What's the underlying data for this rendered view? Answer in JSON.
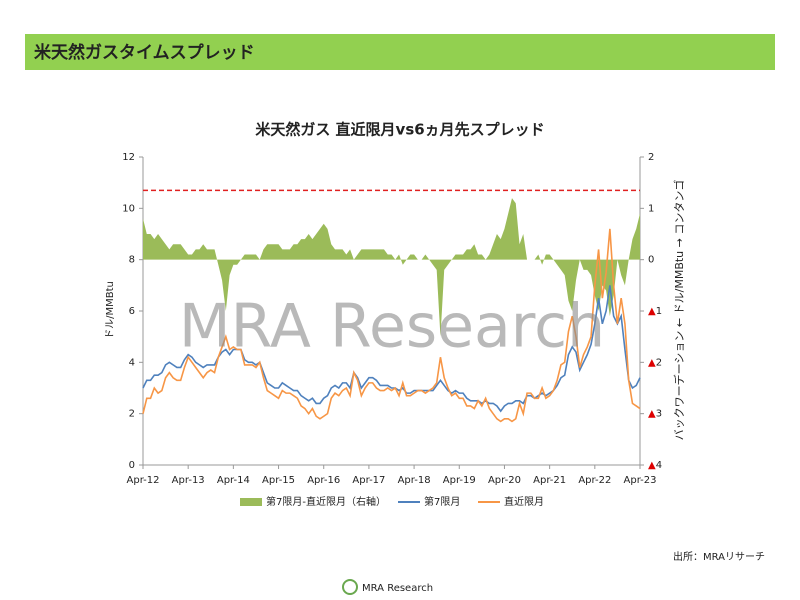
{
  "header": {
    "title": "米天然ガスタイムスプレッド"
  },
  "source": "出所：MRAリサーチ",
  "logo": "MRA Research",
  "watermark": "MRA Research",
  "chart_data": {
    "type": "line",
    "title": "米天然ガス 直近限月vs6ヵ月先スプレッド",
    "y_label": "ドル/MMBtu",
    "y2_label": "バックワーデーション ← ドル/MMBtu → コンタンゴ",
    "categories": [
      "Apr-12",
      null,
      null,
      null,
      null,
      null,
      null,
      null,
      null,
      null,
      null,
      null,
      "Apr-13",
      null,
      null,
      null,
      null,
      null,
      null,
      null,
      null,
      null,
      null,
      null,
      "Apr-14",
      null,
      null,
      null,
      null,
      null,
      null,
      null,
      null,
      null,
      null,
      null,
      "Apr-15",
      null,
      null,
      null,
      null,
      null,
      null,
      null,
      null,
      null,
      null,
      null,
      "Apr-16",
      null,
      null,
      null,
      null,
      null,
      null,
      null,
      null,
      null,
      null,
      null,
      "Apr-17",
      null,
      null,
      null,
      null,
      null,
      null,
      null,
      null,
      null,
      null,
      null,
      "Apr-18",
      null,
      null,
      null,
      null,
      null,
      null,
      null,
      null,
      null,
      null,
      null,
      "Apr-19",
      null,
      null,
      null,
      null,
      null,
      null,
      null,
      null,
      null,
      null,
      null,
      "Apr-20",
      null,
      null,
      null,
      null,
      null,
      null,
      null,
      null,
      null,
      null,
      null,
      "Apr-21",
      null,
      null,
      null,
      null,
      null,
      null,
      null,
      null,
      null,
      null,
      null,
      "Apr-22",
      null,
      null,
      null,
      null,
      null,
      null,
      null,
      null,
      null,
      null,
      null,
      "Apr-23"
    ],
    "series": [
      {
        "name": "第7限月-直近限月（右軸）",
        "color": "#9bbb59",
        "axis": "y2",
        "kind": "area",
        "values": [
          0.8,
          0.5,
          0.5,
          0.4,
          0.5,
          0.4,
          0.3,
          0.2,
          0.3,
          0.3,
          0.3,
          0.2,
          0.1,
          0.1,
          0.2,
          0.2,
          0.3,
          0.2,
          0.2,
          0.2,
          -0.1,
          -0.4,
          -1.0,
          -0.3,
          -0.1,
          -0.1,
          0.0,
          0.1,
          0.1,
          0.1,
          0.1,
          0.0,
          0.2,
          0.3,
          0.3,
          0.3,
          0.3,
          0.2,
          0.2,
          0.2,
          0.3,
          0.3,
          0.4,
          0.4,
          0.5,
          0.4,
          0.5,
          0.6,
          0.7,
          0.6,
          0.3,
          0.2,
          0.2,
          0.2,
          0.1,
          0.2,
          0.0,
          0.1,
          0.2,
          0.2,
          0.2,
          0.2,
          0.2,
          0.2,
          0.2,
          0.1,
          0.1,
          0.0,
          0.1,
          -0.1,
          0.0,
          0.1,
          0.1,
          0.0,
          0.0,
          0.1,
          0.0,
          -0.1,
          -0.2,
          -1.5,
          -0.2,
          -0.1,
          0.0,
          0.1,
          0.1,
          0.1,
          0.2,
          0.2,
          0.3,
          0.1,
          0.1,
          0.0,
          0.1,
          0.3,
          0.5,
          0.4,
          0.6,
          0.9,
          1.2,
          1.1,
          0.3,
          0.5,
          0.0,
          0.0,
          0.0,
          0.1,
          -0.1,
          0.1,
          0.1,
          0.0,
          -0.1,
          -0.2,
          -0.3,
          -0.8,
          -1.0,
          -0.4,
          0.0,
          -0.2,
          -0.2,
          -0.3,
          -0.7,
          -1.0,
          -0.5,
          -0.6,
          -1.1,
          -0.7,
          0.0,
          -0.3,
          -0.5,
          0.0,
          0.4,
          0.6,
          0.9
        ]
      },
      {
        "name": "第7限月",
        "color": "#4f81bd",
        "axis": "y",
        "kind": "line",
        "values": [
          3.0,
          3.3,
          3.3,
          3.5,
          3.5,
          3.6,
          3.9,
          4.0,
          3.9,
          3.8,
          3.8,
          4.1,
          4.3,
          4.2,
          4.0,
          3.9,
          3.8,
          3.9,
          3.9,
          3.9,
          4.2,
          4.4,
          4.5,
          4.3,
          4.5,
          4.5,
          4.5,
          4.1,
          4.0,
          4.0,
          3.9,
          4.0,
          3.6,
          3.2,
          3.1,
          3.0,
          3.0,
          3.2,
          3.1,
          3.0,
          2.9,
          2.9,
          2.7,
          2.6,
          2.5,
          2.6,
          2.4,
          2.4,
          2.6,
          2.7,
          3.0,
          3.1,
          3.0,
          3.2,
          3.2,
          3.0,
          3.6,
          3.4,
          3.0,
          3.2,
          3.4,
          3.4,
          3.3,
          3.1,
          3.1,
          3.1,
          3.0,
          3.0,
          2.9,
          3.0,
          2.8,
          2.8,
          2.9,
          2.9,
          2.9,
          2.9,
          2.9,
          2.9,
          3.1,
          3.3,
          3.1,
          2.9,
          2.8,
          2.9,
          2.8,
          2.8,
          2.6,
          2.5,
          2.5,
          2.5,
          2.4,
          2.5,
          2.4,
          2.4,
          2.3,
          2.1,
          2.3,
          2.4,
          2.4,
          2.5,
          2.5,
          2.4,
          2.7,
          2.7,
          2.6,
          2.7,
          2.8,
          2.7,
          2.8,
          2.9,
          3.1,
          3.4,
          3.5,
          4.3,
          4.6,
          4.4,
          3.7,
          4.0,
          4.3,
          4.7,
          5.5,
          6.5,
          5.5,
          6.0,
          7.0,
          5.8,
          5.5,
          5.8,
          4.5,
          3.3,
          3.0,
          3.1,
          3.4
        ]
      },
      {
        "name": "直近限月",
        "color": "#f79646",
        "axis": "y",
        "kind": "line",
        "values": [
          2.0,
          2.6,
          2.6,
          3.0,
          2.8,
          2.9,
          3.4,
          3.6,
          3.4,
          3.3,
          3.3,
          3.8,
          4.2,
          4.0,
          3.8,
          3.6,
          3.4,
          3.6,
          3.7,
          3.6,
          4.2,
          4.6,
          5.0,
          4.5,
          4.6,
          4.5,
          4.5,
          3.9,
          3.9,
          3.9,
          3.8,
          4.0,
          3.4,
          2.9,
          2.8,
          2.7,
          2.6,
          2.9,
          2.8,
          2.8,
          2.7,
          2.6,
          2.3,
          2.2,
          2.0,
          2.2,
          1.9,
          1.8,
          1.9,
          2.0,
          2.6,
          2.8,
          2.7,
          2.9,
          3.0,
          2.7,
          3.6,
          3.3,
          2.7,
          3.0,
          3.2,
          3.2,
          3.0,
          2.9,
          2.9,
          3.0,
          2.9,
          3.0,
          2.7,
          3.2,
          2.7,
          2.7,
          2.8,
          2.9,
          2.9,
          2.8,
          2.9,
          3.0,
          3.2,
          4.2,
          3.4,
          3.0,
          2.7,
          2.8,
          2.6,
          2.6,
          2.3,
          2.3,
          2.2,
          2.5,
          2.3,
          2.6,
          2.2,
          2.0,
          1.8,
          1.7,
          1.8,
          1.8,
          1.7,
          1.8,
          2.4,
          2.0,
          2.8,
          2.8,
          2.6,
          2.6,
          3.0,
          2.6,
          2.7,
          2.9,
          3.3,
          3.9,
          4.0,
          5.2,
          5.8,
          5.0,
          3.8,
          4.3,
          4.6,
          5.0,
          7.0,
          8.4,
          6.5,
          7.5,
          9.2,
          7.0,
          5.5,
          6.5,
          5.5,
          3.3,
          2.4,
          2.3,
          2.2
        ]
      }
    ],
    "reference_line": {
      "value": 10.7,
      "color": "#e02020"
    },
    "ylim": [
      0,
      12
    ],
    "yticks": [
      0,
      2,
      4,
      6,
      8,
      10,
      12
    ],
    "y2lim": [
      -4,
      2
    ],
    "y2ticks": [
      {
        "value": -4,
        "label": "▲4"
      },
      {
        "value": -3,
        "label": "▲3"
      },
      {
        "value": -2,
        "label": "▲2"
      },
      {
        "value": -1,
        "label": "▲1"
      },
      0,
      1,
      2
    ],
    "legend": "bottom"
  }
}
